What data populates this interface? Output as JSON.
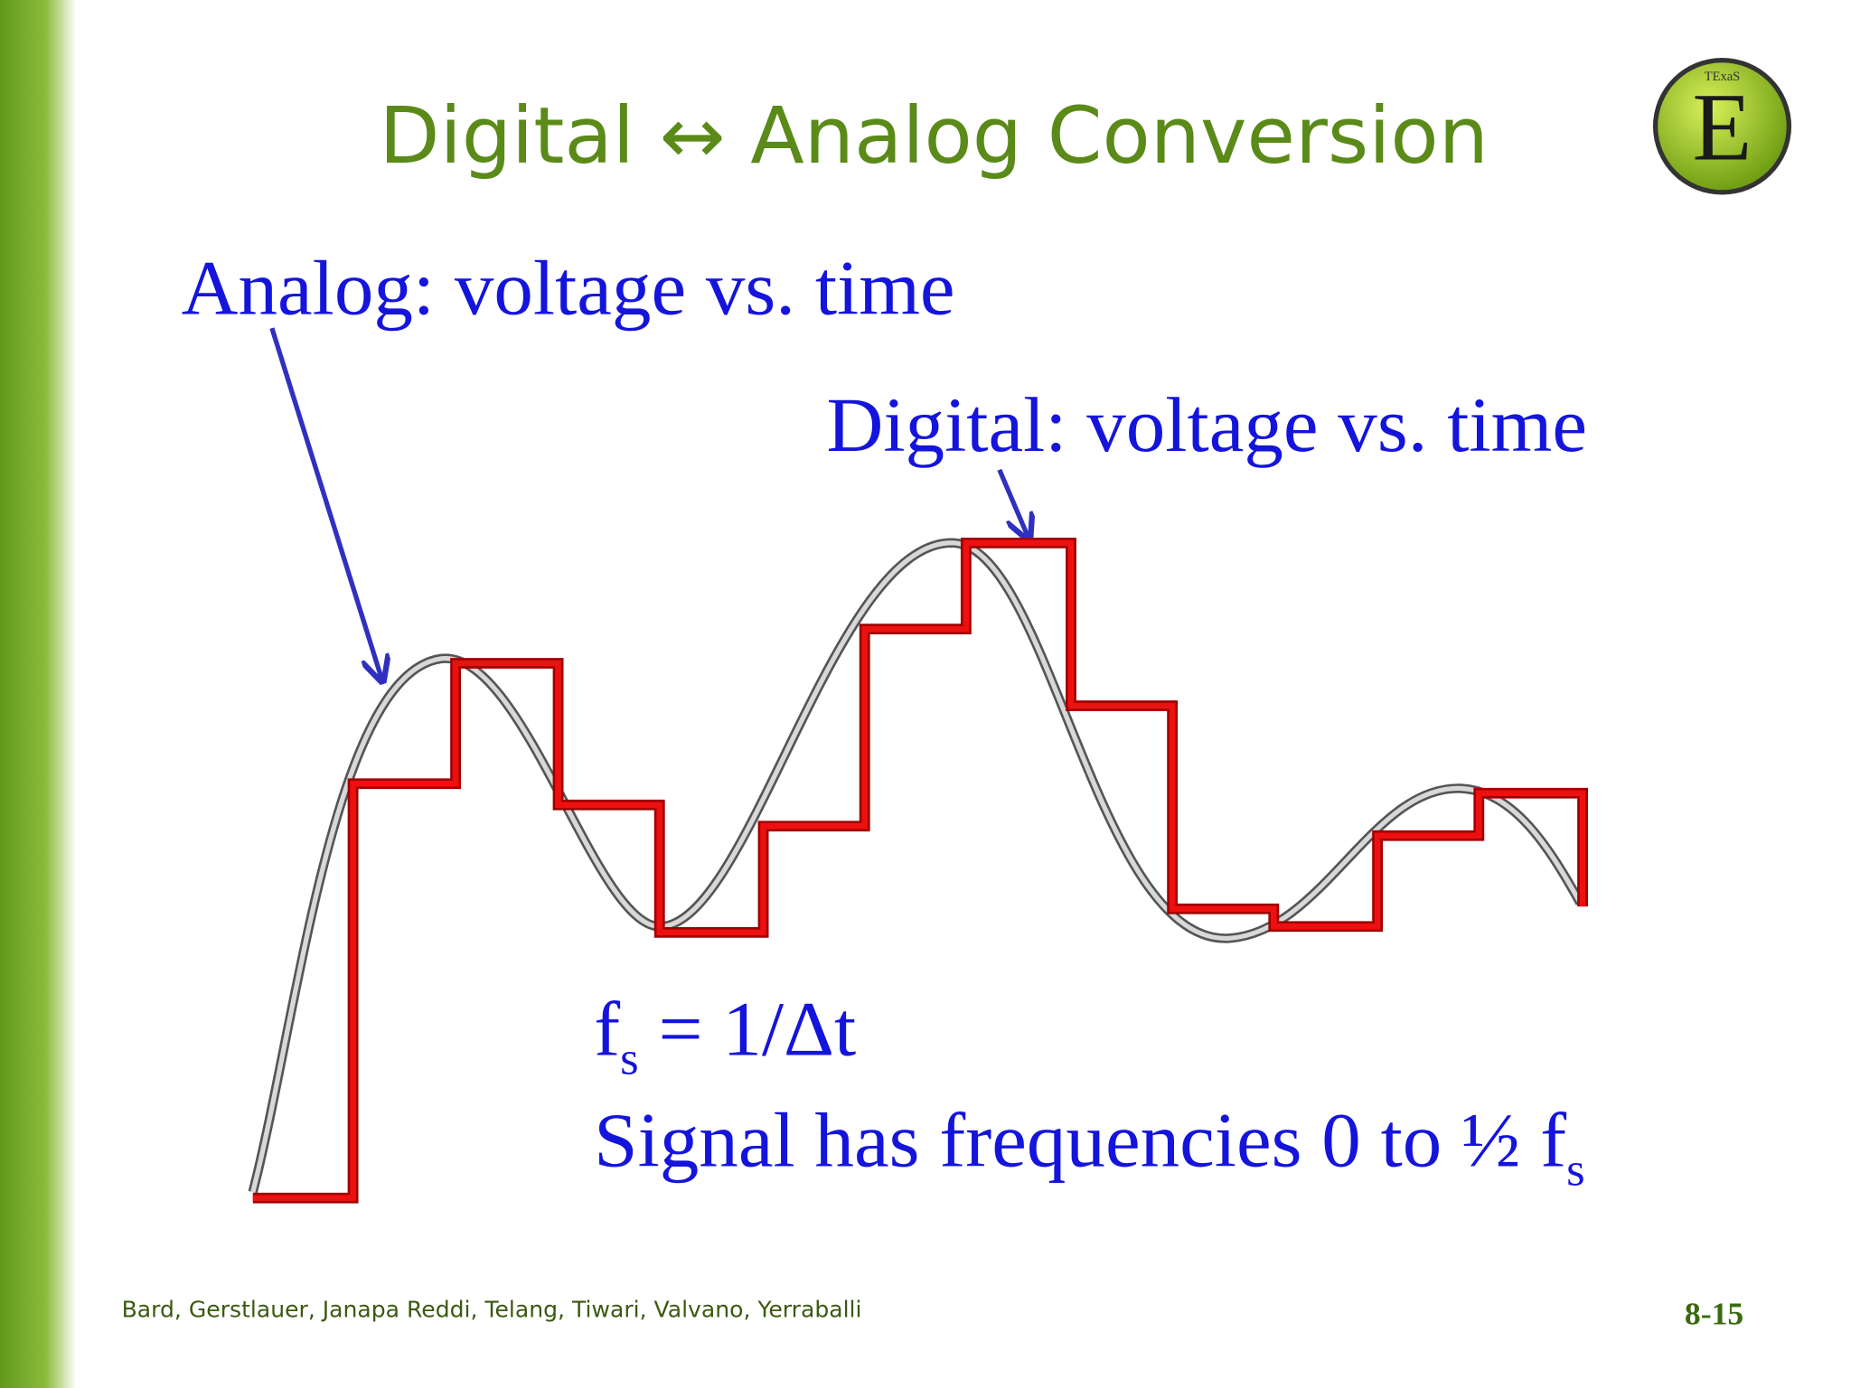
{
  "slide": {
    "title": "Digital ↔ Analog Conversion",
    "logo": {
      "top": "TExaS",
      "letter": "E"
    },
    "analog_label": "Analog: voltage vs. time",
    "digital_label": "Digital: voltage vs. time",
    "formula": {
      "f": "f",
      "sub": "s",
      "rest": " = 1/Δt"
    },
    "signal_line": {
      "text": "Signal has frequencies 0 to ½ f",
      "sub": "s"
    },
    "footer": {
      "authors": "Bard, Gerstlauer, Janapa Reddi, Telang, Tiwari, Valvano, Yerraballi",
      "page": "8-15"
    }
  }
}
